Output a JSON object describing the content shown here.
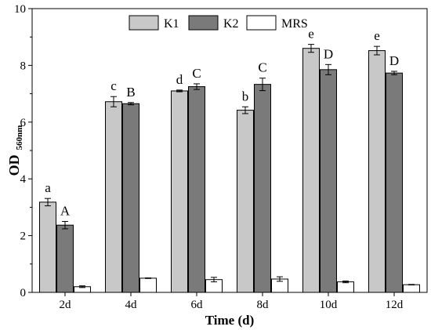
{
  "chart_data": {
    "type": "bar",
    "categories": [
      "2d",
      "4d",
      "6d",
      "8d",
      "10d",
      "12d"
    ],
    "series": [
      {
        "name": "K1",
        "color": "#c8c8c8",
        "values": [
          3.18,
          6.72,
          7.1,
          6.42,
          8.6,
          8.52
        ],
        "errors": [
          0.13,
          0.18,
          0.03,
          0.12,
          0.14,
          0.15
        ],
        "labels": [
          "a",
          "c",
          "d",
          "b",
          "e",
          "e"
        ]
      },
      {
        "name": "K2",
        "color": "#7a7a7a",
        "values": [
          2.37,
          6.65,
          7.25,
          7.33,
          7.85,
          7.73
        ],
        "errors": [
          0.13,
          0.04,
          0.1,
          0.22,
          0.18,
          0.06
        ],
        "labels": [
          "A",
          "B",
          "C",
          "C",
          "D",
          "D"
        ]
      },
      {
        "name": "MRS",
        "color": "#ffffff",
        "values": [
          0.2,
          0.5,
          0.45,
          0.47,
          0.37,
          0.27
        ],
        "errors": [
          0.03,
          0.01,
          0.08,
          0.08,
          0.03,
          0.01
        ],
        "labels": [
          "",
          "",
          "",
          "",
          "",
          ""
        ]
      }
    ],
    "xlabel": "Time (d)",
    "ylabel": "OD",
    "ylabel_subscript": "560nm",
    "ylim": [
      0,
      10
    ],
    "yticks": [
      "0",
      "2",
      "4",
      "6",
      "8",
      "10"
    ],
    "legend_position": "top-center",
    "grid": false
  }
}
